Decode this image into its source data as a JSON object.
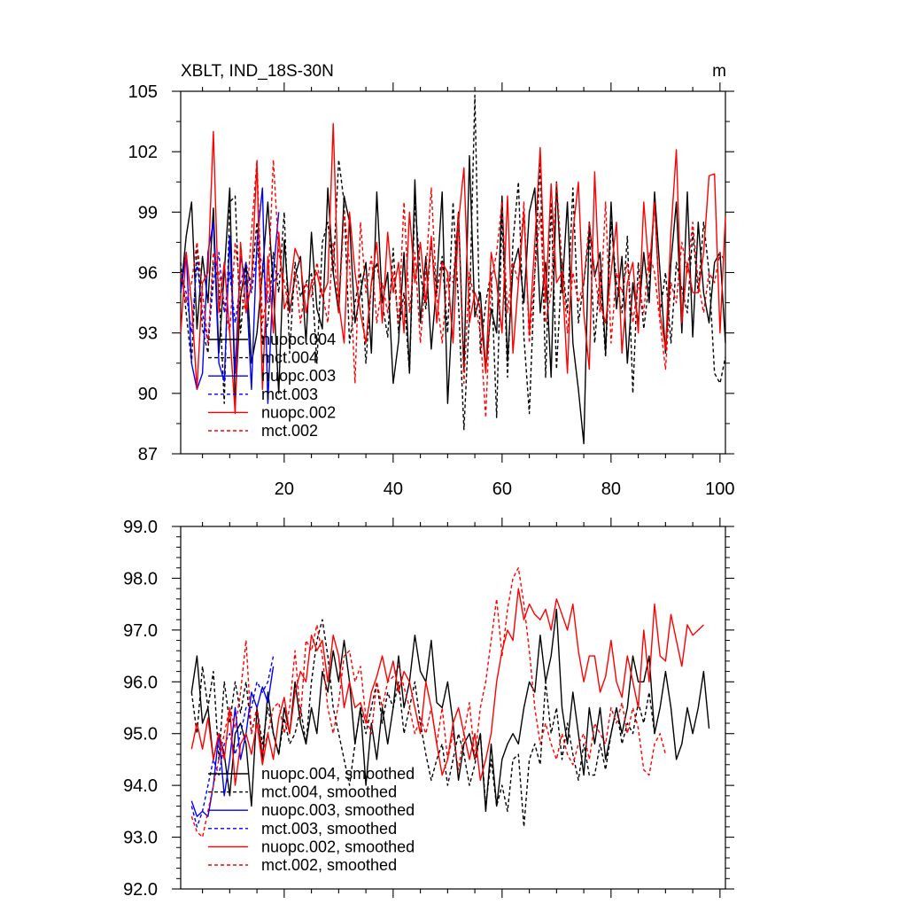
{
  "chart_data": [
    {
      "type": "line",
      "title": "XBLT, IND_18S-30N",
      "units": "m",
      "xlim": [
        1,
        101
      ],
      "ylim": [
        87,
        105
      ],
      "xticks": [
        20,
        40,
        60,
        80,
        100
      ],
      "yticks": [
        87,
        90,
        93,
        96,
        99,
        102,
        105
      ],
      "ytick_labels": [
        "87",
        "90",
        "93",
        "96",
        "99",
        "102",
        "105"
      ],
      "legend_position": "lower-left",
      "series": [
        {
          "name": "nuopc.004",
          "color": "#000000",
          "dash": "solid",
          "x_start": 1,
          "x_step": 1,
          "values": [
            95.0,
            97.8,
            99.5,
            93.2,
            96.8,
            94.5,
            99.2,
            92.0,
            96.0,
            100.2,
            89.5,
            94.8,
            96.5,
            91.5,
            93.0,
            96.0,
            99.5,
            95.2,
            90.0,
            97.6,
            94.0,
            95.8,
            96.8,
            92.5,
            98.0,
            94.2,
            93.2,
            100.2,
            96.0,
            94.0,
            99.8,
            98.5,
            93.5,
            95.0,
            96.5,
            92.0,
            100.0,
            94.5,
            96.0,
            90.5,
            92.6,
            97.0,
            91.0,
            100.6,
            93.5,
            96.8,
            92.2,
            95.5,
            100.0,
            89.5,
            94.8,
            99.0,
            91.2,
            101.8,
            93.8,
            95.0,
            91.2,
            94.2,
            93.0,
            99.8,
            91.6,
            96.2,
            97.2,
            94.5,
            99.0,
            100.2,
            94.0,
            96.5,
            90.8,
            100.5,
            95.0,
            99.5,
            92.5,
            90.2,
            87.5,
            98.5,
            95.8,
            97.0,
            92.0,
            99.5,
            94.2,
            96.8,
            91.5,
            95.5,
            93.5,
            97.0,
            94.5,
            100.0,
            96.0,
            92.0,
            96.5,
            99.5,
            93.0,
            100.0,
            92.8,
            98.5,
            95.0,
            93.5,
            96.5,
            97.0,
            92.5
          ]
        },
        {
          "name": "mct.004",
          "color": "#000000",
          "dash": "dashed",
          "x_start": 1,
          "x_step": 1,
          "values": [
            96.5,
            94.0,
            91.5,
            97.5,
            93.2,
            92.0,
            96.5,
            95.5,
            89.5,
            99.5,
            99.8,
            93.0,
            96.2,
            95.5,
            98.5,
            92.5,
            93.5,
            97.0,
            95.0,
            99.0,
            92.0,
            96.5,
            94.8,
            95.5,
            96.0,
            91.5,
            97.5,
            98.5,
            96.0,
            101.6,
            99.5,
            92.5,
            94.5,
            96.0,
            91.5,
            95.5,
            96.5,
            94.5,
            92.8,
            97.2,
            93.0,
            95.0,
            91.0,
            99.5,
            96.0,
            94.2,
            97.5,
            95.0,
            96.8,
            93.0,
            99.5,
            94.5,
            88.2,
            94.0,
            104.8,
            92.0,
            94.5,
            96.0,
            88.8,
            99.0,
            90.8,
            97.5,
            100.5,
            92.8,
            89.0,
            96.0,
            101.5,
            90.8,
            99.5,
            91.2,
            96.5,
            94.0,
            100.2,
            93.5,
            95.5,
            98.0,
            92.5,
            96.0,
            91.8,
            98.5,
            95.5,
            94.0,
            97.8,
            90.0,
            96.5,
            93.2,
            95.5,
            99.5,
            94.0,
            96.0,
            92.5,
            96.5,
            95.2,
            94.0,
            98.0,
            95.0,
            98.5,
            96.0,
            91.0,
            90.5,
            91.8
          ]
        },
        {
          "name": "nuopc.003",
          "color": "#0000ff",
          "dash": "solid",
          "x_start": 1,
          "x_step": 1,
          "values": [
            95.0,
            97.0,
            91.5,
            90.2,
            91.0,
            97.0,
            98.5,
            91.5,
            90.6,
            97.8,
            91.0,
            96.8,
            95.5,
            90.2,
            97.5,
            100.2,
            89.5,
            96.0,
            99.0
          ]
        },
        {
          "name": "mct.003",
          "color": "#0000ff",
          "dash": "dashed",
          "x_start": 1,
          "x_step": 1,
          "values": [
            96.0,
            95.0,
            93.0,
            96.5,
            94.0,
            92.5,
            95.5,
            97.0,
            94.0,
            96.0,
            93.5,
            95.5,
            96.5,
            95.0,
            97.0,
            96.5,
            94.5,
            95.5,
            96.0
          ]
        },
        {
          "name": "nuopc.002",
          "color": "#ff0000",
          "dash": "solid",
          "x_start": 1,
          "x_step": 1,
          "values": [
            93.0,
            97.0,
            94.5,
            90.2,
            95.5,
            96.0,
            103.0,
            94.0,
            96.5,
            93.0,
            89.0,
            97.5,
            94.0,
            95.5,
            101.5,
            90.2,
            96.8,
            93.0,
            98.0,
            94.2,
            95.0,
            97.2,
            96.5,
            94.0,
            95.5,
            96.0,
            94.8,
            95.5,
            103.4,
            94.5,
            92.5,
            99.0,
            96.0,
            94.0,
            92.5,
            95.5,
            97.5,
            93.5,
            98.0,
            95.0,
            96.5,
            93.0,
            99.0,
            95.5,
            97.5,
            94.5,
            97.8,
            93.5,
            96.5,
            96.0,
            92.5,
            98.5,
            101.2,
            93.5,
            95.0,
            94.2,
            91.0,
            97.0,
            95.5,
            93.0,
            99.8,
            92.0,
            95.5,
            99.0,
            93.0,
            97.5,
            102.2,
            94.5,
            100.4,
            95.5,
            96.0,
            91.0,
            98.0,
            100.5,
            94.0,
            91.2,
            101.0,
            94.5,
            93.5,
            96.0,
            98.5,
            92.0,
            95.5,
            96.5,
            93.0,
            99.5,
            96.0,
            99.5,
            94.0,
            92.2,
            98.0,
            102.1,
            93.5,
            96.5,
            95.0,
            95.0,
            97.0,
            100.8,
            100.9,
            93.0,
            98.8
          ]
        },
        {
          "name": "mct.002",
          "color": "#ff0000",
          "dash": "dashed",
          "x_start": 1,
          "x_step": 1,
          "values": [
            96.0,
            94.5,
            95.5,
            97.5,
            95.0,
            92.5,
            97.0,
            96.0,
            94.5,
            93.0,
            97.5,
            95.0,
            94.0,
            98.0,
            101.6,
            93.5,
            95.0,
            101.6,
            97.0,
            95.5,
            94.0,
            96.0,
            93.5,
            95.5,
            94.8,
            96.5,
            95.0,
            93.5,
            97.5,
            94.0,
            99.0,
            96.5,
            90.5,
            98.5,
            95.0,
            96.8,
            93.5,
            95.5,
            94.0,
            96.0,
            93.5,
            99.5,
            94.0,
            97.0,
            92.5,
            96.0,
            100.2,
            94.8,
            92.5,
            96.0,
            95.5,
            99.0,
            90.5,
            96.0,
            94.5,
            93.0,
            88.8,
            95.5,
            97.0,
            99.5,
            94.0,
            96.5,
            95.5,
            99.5,
            92.5,
            96.0,
            99.0,
            93.5,
            95.0,
            100.5,
            96.5,
            93.0,
            96.0,
            94.5,
            95.5,
            98.5,
            96.0,
            94.0,
            99.5,
            92.5,
            96.0,
            95.0,
            96.5,
            93.5,
            95.5,
            94.0,
            97.0,
            96.0,
            93.5,
            91.2,
            95.5,
            94.5,
            97.5,
            96.0,
            98.5,
            95.5,
            94.0,
            96.0,
            95.5,
            97.0,
            96.5
          ]
        }
      ],
      "legend": [
        "nuopc.004",
        "mct.004",
        "nuopc.003",
        "mct.003",
        "nuopc.002",
        "mct.002"
      ]
    },
    {
      "type": "line",
      "title": "",
      "xlim": [
        1,
        101
      ],
      "ylim": [
        92.0,
        99.0
      ],
      "xticks": [
        20,
        40,
        60,
        80,
        100
      ],
      "yticks": [
        92.0,
        93.0,
        94.0,
        95.0,
        96.0,
        97.0,
        98.0,
        99.0
      ],
      "ytick_labels": [
        "92.0",
        "93.0",
        "94.0",
        "95.0",
        "96.0",
        "97.0",
        "98.0",
        "99.0"
      ],
      "legend_position": "lower-left",
      "series": [
        {
          "name": "nuopc.004, smoothed",
          "color": "#000000",
          "dash": "solid",
          "x_start": 3,
          "x_step": 1,
          "values": [
            95.8,
            96.5,
            95.2,
            95.5,
            94.5,
            95.0,
            94.6,
            93.8,
            95.0,
            95.2,
            94.8,
            93.6,
            95.5,
            94.5,
            95.8,
            95.0,
            94.6,
            95.5,
            95.0,
            96.0,
            95.2,
            94.8,
            95.5,
            95.0,
            96.2,
            95.8,
            96.6,
            96.0,
            96.8,
            96.0,
            94.8,
            95.5,
            94.0,
            95.2,
            94.5,
            95.5,
            94.8,
            95.5,
            96.5,
            95.5,
            96.0,
            96.9,
            96.2,
            96.0,
            96.8,
            95.6,
            95.5,
            96.0,
            95.2,
            94.1,
            94.8,
            95.0,
            94.5,
            95.0,
            93.5,
            94.8,
            93.6,
            94.5,
            94.8,
            95.0,
            94.8,
            95.5,
            96.0,
            95.8,
            96.9,
            96.0,
            96.5,
            97.4,
            95.5,
            94.8,
            95.8,
            95.0,
            94.2,
            95.5,
            94.8,
            95.5,
            94.5,
            95.0,
            95.5,
            95.0,
            95.5,
            96.5,
            96.0,
            96.0,
            96.5,
            95.0,
            95.5,
            96.2,
            95.5,
            94.5,
            94.8,
            95.5,
            95.0,
            95.5,
            96.2,
            95.1
          ]
        },
        {
          "name": "mct.004, smoothed",
          "color": "#000000",
          "dash": "dashed",
          "x_start": 3,
          "x_step": 1,
          "values": [
            95.8,
            95.0,
            96.3,
            95.5,
            96.2,
            94.5,
            96.0,
            95.2,
            96.0,
            95.4,
            96.0,
            95.0,
            95.5,
            94.8,
            95.5,
            95.0,
            94.6,
            95.3,
            94.8,
            95.0,
            95.5,
            94.8,
            96.0,
            96.8,
            97.2,
            96.5,
            95.5,
            95.0,
            94.5,
            94.0,
            94.8,
            95.5,
            95.0,
            95.5,
            96.0,
            95.2,
            95.8,
            95.5,
            96.0,
            95.0,
            95.5,
            96.0,
            95.2,
            94.6,
            94.1,
            94.5,
            94.8,
            94.0,
            94.5,
            95.0,
            94.6,
            94.0,
            94.4,
            95.0,
            93.6,
            94.5,
            93.6,
            94.0,
            93.5,
            94.5,
            94.6,
            93.2,
            94.5,
            94.8,
            94.4,
            96.0,
            95.0,
            95.5,
            94.5,
            95.2,
            94.6,
            94.1,
            94.8,
            94.2,
            94.2,
            94.8,
            94.3,
            95.0,
            95.5,
            94.8,
            95.2,
            95.0,
            95.6,
            95.2,
            95.8,
            95.0
          ]
        },
        {
          "name": "nuopc.003, smoothed",
          "color": "#0000ff",
          "dash": "solid",
          "x_start": 3,
          "x_step": 1,
          "values": [
            93.7,
            93.4,
            93.5,
            93.4,
            94.0,
            95.0,
            93.8,
            94.5,
            95.5,
            94.5,
            95.0,
            95.8,
            95.5,
            95.9,
            95.6,
            96.3
          ]
        },
        {
          "name": "mct.003, smoothed",
          "color": "#0000ff",
          "dash": "dashed",
          "x_start": 3,
          "x_step": 1,
          "values": [
            93.6,
            93.2,
            93.5,
            94.0,
            94.5,
            94.2,
            94.8,
            95.0,
            94.6,
            95.0,
            95.5,
            95.5,
            96.0,
            95.8,
            96.0,
            96.5
          ]
        },
        {
          "name": "nuopc.002, smoothed",
          "color": "#ff0000",
          "dash": "solid",
          "x_start": 3,
          "x_step": 1,
          "values": [
            94.7,
            95.2,
            94.7,
            95.3,
            94.5,
            95.0,
            94.5,
            95.5,
            94.0,
            94.8,
            95.0,
            94.6,
            95.2,
            94.4,
            95.0,
            94.5,
            95.3,
            95.7,
            95.0,
            95.8,
            96.2,
            96.0,
            96.9,
            96.6,
            96.8,
            96.0,
            96.9,
            96.5,
            95.5,
            96.0,
            95.5,
            95.6,
            95.2,
            95.8,
            96.1,
            96.5,
            96.0,
            96.4,
            95.8,
            96.2,
            96.0,
            95.5,
            95.0,
            96.0,
            95.5,
            94.8,
            94.2,
            94.5,
            95.2,
            95.5,
            95.0,
            94.5,
            95.0,
            94.1,
            94.5,
            95.0,
            96.0,
            96.6,
            97.0,
            96.8,
            97.8,
            97.2,
            97.5,
            97.3,
            97.2,
            97.4,
            97.0,
            97.6,
            97.3,
            97.0,
            97.5,
            96.6,
            96.0,
            96.5,
            96.5,
            95.8,
            96.1,
            96.8,
            96.0,
            95.7,
            96.5,
            96.0,
            95.5,
            97.0,
            96.0,
            97.5,
            96.5,
            96.4,
            97.3,
            96.8,
            96.3,
            97.1,
            96.9,
            97.0,
            97.1
          ]
        },
        {
          "name": "mct.002, smoothed",
          "color": "#ff0000",
          "dash": "dashed",
          "x_start": 3,
          "x_step": 1,
          "values": [
            93.4,
            93.1,
            93.0,
            93.5,
            94.0,
            94.5,
            95.0,
            95.5,
            95.1,
            95.8,
            96.8,
            95.0,
            95.5,
            94.6,
            95.0,
            95.5,
            95.6,
            95.0,
            95.5,
            96.6,
            95.3,
            96.8,
            96.6,
            97.1,
            96.5,
            95.5,
            95.0,
            95.6,
            96.5,
            96.6,
            96.0,
            96.3,
            95.3,
            95.0,
            96.0,
            95.5,
            96.0,
            96.1,
            96.3,
            95.9,
            95.5,
            95.0,
            95.3,
            95.0,
            95.5,
            94.8,
            95.5,
            94.5,
            95.0,
            94.3,
            95.0,
            95.6,
            94.5,
            95.5,
            96.0,
            96.8,
            97.6,
            96.5,
            97.4,
            98.0,
            98.2,
            97.5,
            96.6,
            95.5,
            94.8,
            95.2,
            94.8,
            94.5,
            95.0,
            94.6,
            94.4,
            94.8,
            95.0,
            94.5,
            95.2,
            95.0,
            94.8,
            95.5,
            95.2,
            95.6,
            95.0,
            95.5,
            95.1,
            94.3,
            94.2,
            94.8,
            95.0,
            94.6
          ]
        }
      ],
      "legend": [
        "nuopc.004, smoothed",
        "mct.004, smoothed",
        "nuopc.003, smoothed",
        "mct.003, smoothed",
        "nuopc.002, smoothed",
        "mct.002, smoothed"
      ]
    }
  ]
}
